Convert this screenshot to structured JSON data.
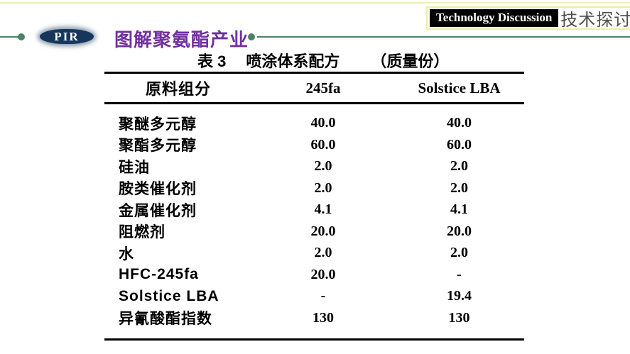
{
  "badge": {
    "en_label": "Technology Discussion",
    "zh_label": "技术探讨"
  },
  "header": {
    "pir_label": "PIR",
    "title": "图解聚氨酯产业"
  },
  "table": {
    "caption": {
      "label": "表 3",
      "title": "喷涂体系配方",
      "unit": "（质量份）"
    },
    "columns": [
      "原料组分",
      "245fa",
      "Solstice LBA"
    ],
    "rows": [
      [
        "聚醚多元醇",
        "40.0",
        "40.0"
      ],
      [
        "聚酯多元醇",
        "60.0",
        "60.0"
      ],
      [
        "硅油",
        "2.0",
        "2.0"
      ],
      [
        "胺类催化剂",
        "2.0",
        "2.0"
      ],
      [
        "金属催化剂",
        "4.1",
        "4.1"
      ],
      [
        "阻燃剂",
        "20.0",
        "20.0"
      ],
      [
        "水",
        "2.0",
        "2.0"
      ],
      [
        "HFC-245fa",
        "20.0",
        "-"
      ],
      [
        "Solstice LBA",
        "-",
        "19.4"
      ],
      [
        "异氰酸酯指数",
        "130",
        "130"
      ]
    ]
  },
  "colors": {
    "title_purple": "#7030a0",
    "accent_green": "#4a8266",
    "pir_navy": "#16365c",
    "badge_border_yellow": "#eeeea0",
    "badge_zh_gray": "#4f4f4f",
    "table_rule_black": "#000000"
  }
}
